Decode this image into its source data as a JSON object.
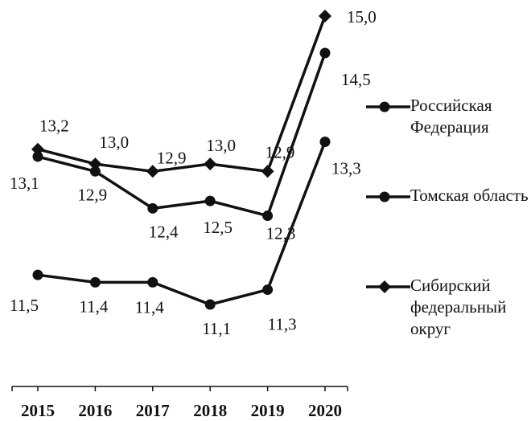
{
  "chart_data": {
    "type": "line",
    "categories": [
      "2015",
      "2016",
      "2017",
      "2018",
      "2019",
      "2020"
    ],
    "series": [
      {
        "name": "Российская Федерация",
        "color": "#111111",
        "marker": "circle",
        "values": [
          13.1,
          12.9,
          12.4,
          12.5,
          12.3,
          14.5
        ],
        "value_labels": [
          "13,1",
          "12,9",
          "12,4",
          "12,5",
          "12,3",
          "14,5"
        ]
      },
      {
        "name": "Томская область",
        "color": "#111111",
        "marker": "circle",
        "values": [
          11.5,
          11.4,
          11.4,
          11.1,
          11.3,
          13.3
        ],
        "value_labels": [
          "11,5",
          "11,4",
          "11,4",
          "11,1",
          "11,3",
          "13,3"
        ]
      },
      {
        "name": "Сибирский федеральный округ",
        "color": "#111111",
        "marker": "diamond",
        "values": [
          13.2,
          13.0,
          12.9,
          13.0,
          12.9,
          15.0
        ],
        "value_labels": [
          "13,2",
          "13,0",
          "12,9",
          "13,0",
          "12,9",
          "15,0"
        ]
      }
    ]
  }
}
